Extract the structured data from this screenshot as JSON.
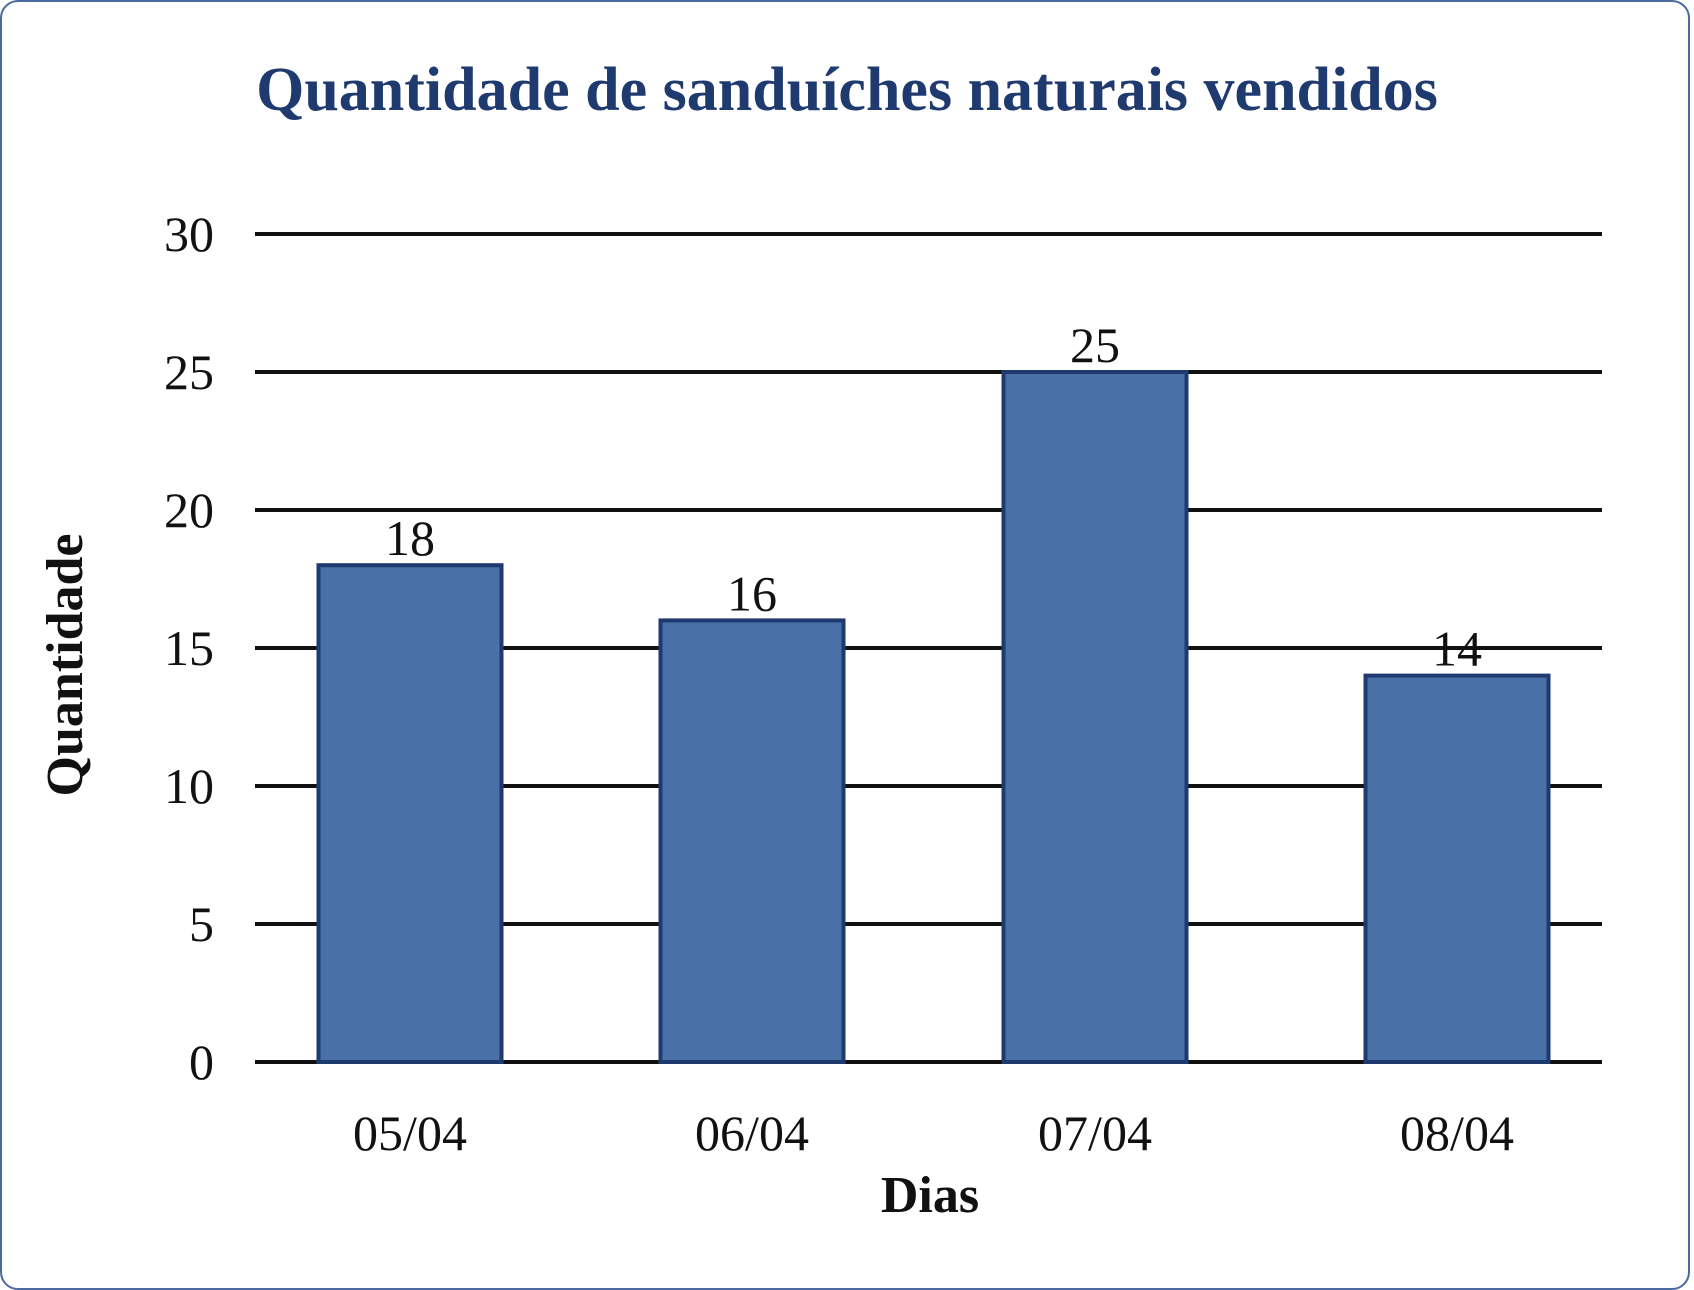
{
  "chart_data": {
    "type": "bar",
    "title": "Quantidade de sanduíches naturais vendidos",
    "xlabel": "Dias",
    "ylabel": "Quantidade",
    "categories": [
      "05/04",
      "06/04",
      "07/04",
      "08/04"
    ],
    "values": [
      18,
      16,
      25,
      14
    ],
    "data_labels": [
      "18",
      "16",
      "25",
      "14"
    ],
    "ylim": [
      0,
      30
    ],
    "yticks": [
      "0",
      "5",
      "10",
      "15",
      "20",
      "25",
      "30"
    ],
    "grid": true,
    "legend": "none",
    "colors": {
      "bar_fill": "#4a70a8",
      "bar_stroke": "#1f3a6e",
      "title": "#1f3a6e",
      "grid": "#111111"
    }
  }
}
